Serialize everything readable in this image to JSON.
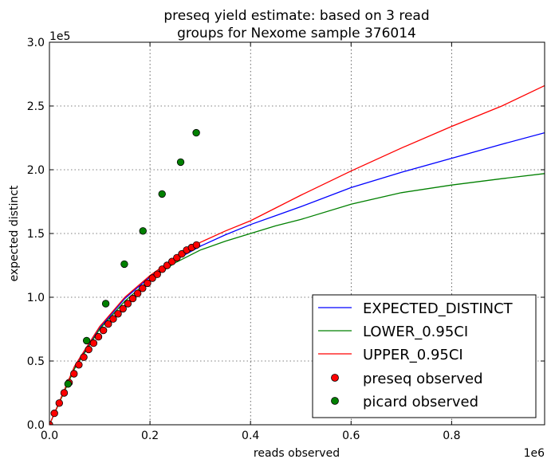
{
  "chart_data": {
    "type": "line",
    "title_line1": "preseq yield estimate: based on 3 read",
    "title_line2": "groups for Nexome sample 376014",
    "xlabel": "reads observed",
    "ylabel": "expected distinct",
    "x_multiplier": "1e6",
    "y_multiplier": "1e5",
    "xlim": [
      0,
      0.985
    ],
    "ylim": [
      0,
      3.0
    ],
    "x_ticks": [
      0,
      0.2,
      0.4,
      0.6,
      0.8
    ],
    "x_tick_labels": [
      "0.0",
      "0.2",
      "0.4",
      "0.6",
      "0.8"
    ],
    "y_ticks": [
      0,
      0.5,
      1.0,
      1.5,
      2.0,
      2.5,
      3.0
    ],
    "y_tick_labels": [
      "0.0",
      "0.5",
      "1.0",
      "1.5",
      "2.0",
      "2.5",
      "3.0"
    ],
    "grid": true,
    "legend_position": "bottom-right",
    "series": [
      {
        "name": "EXPECTED_DISTINCT",
        "kind": "line",
        "color": "#0000ff",
        "x": [
          0,
          0.05,
          0.1,
          0.15,
          0.2,
          0.25,
          0.3,
          0.35,
          0.4,
          0.45,
          0.5,
          0.6,
          0.7,
          0.8,
          0.9,
          0.985
        ],
        "y": [
          0,
          0.45,
          0.76,
          0.99,
          1.16,
          1.29,
          1.4,
          1.49,
          1.57,
          1.64,
          1.71,
          1.86,
          1.98,
          2.09,
          2.2,
          2.29
        ]
      },
      {
        "name": "LOWER_0.95CI",
        "kind": "line",
        "color": "#008000",
        "x": [
          0,
          0.05,
          0.1,
          0.15,
          0.2,
          0.25,
          0.3,
          0.35,
          0.4,
          0.45,
          0.5,
          0.6,
          0.7,
          0.8,
          0.9,
          0.985
        ],
        "y": [
          0,
          0.44,
          0.75,
          0.97,
          1.14,
          1.27,
          1.37,
          1.44,
          1.5,
          1.56,
          1.61,
          1.73,
          1.82,
          1.88,
          1.93,
          1.97
        ]
      },
      {
        "name": "UPPER_0.95CI",
        "kind": "line",
        "color": "#ff0000",
        "x": [
          0,
          0.05,
          0.1,
          0.15,
          0.2,
          0.25,
          0.3,
          0.35,
          0.4,
          0.45,
          0.5,
          0.6,
          0.7,
          0.8,
          0.9,
          0.985
        ],
        "y": [
          0,
          0.46,
          0.77,
          1.0,
          1.17,
          1.31,
          1.43,
          1.52,
          1.6,
          1.7,
          1.8,
          1.99,
          2.17,
          2.34,
          2.5,
          2.66
        ]
      },
      {
        "name": "preseq observed",
        "kind": "points",
        "color": "#ff0000",
        "x": [
          0.0,
          0.0098,
          0.0195,
          0.0293,
          0.039,
          0.0488,
          0.0585,
          0.0683,
          0.078,
          0.0878,
          0.0975,
          0.1073,
          0.117,
          0.1268,
          0.1365,
          0.1463,
          0.156,
          0.1658,
          0.1755,
          0.1853,
          0.195,
          0.2048,
          0.2145,
          0.2243,
          0.234,
          0.2438,
          0.2535,
          0.2633,
          0.273,
          0.2828,
          0.2925
        ],
        "y": [
          0.0,
          0.09,
          0.17,
          0.25,
          0.33,
          0.4,
          0.47,
          0.53,
          0.59,
          0.64,
          0.69,
          0.74,
          0.79,
          0.83,
          0.87,
          0.91,
          0.95,
          0.99,
          1.03,
          1.07,
          1.11,
          1.15,
          1.18,
          1.22,
          1.25,
          1.28,
          1.31,
          1.34,
          1.37,
          1.39,
          1.41
        ]
      },
      {
        "name": "picard observed",
        "kind": "points",
        "color": "#008000",
        "x": [
          0.037,
          0.074,
          0.112,
          0.149,
          0.186,
          0.224,
          0.261,
          0.292
        ],
        "y": [
          0.32,
          0.66,
          0.95,
          1.26,
          1.52,
          1.81,
          2.06,
          2.29
        ]
      }
    ]
  }
}
